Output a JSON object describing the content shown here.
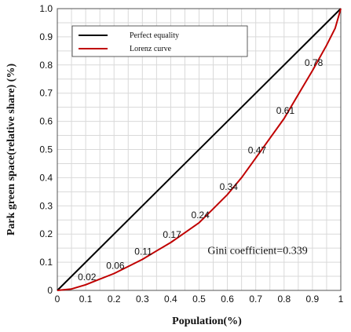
{
  "chart_data": {
    "type": "line",
    "xlabel": "Population(%)",
    "ylabel": "Park green space(relative share) (%)",
    "xlim": [
      0,
      1
    ],
    "ylim": [
      0,
      1
    ],
    "grid": true,
    "legend_position": "top-left",
    "x_ticks": [
      "0",
      "0.1",
      "0.2",
      "0.3",
      "0.4",
      "0.5",
      "0.6",
      "0.7",
      "0.8",
      "0.9",
      "1"
    ],
    "y_ticks": [
      "0",
      "0.1",
      "0.2",
      "0.3",
      "0.4",
      "0.5",
      "0.6",
      "0.7",
      "0.8",
      "0.9",
      "1.0"
    ],
    "series": [
      {
        "name": "Perfect equality",
        "color": "#000000",
        "x": [
          0,
          1
        ],
        "y": [
          0,
          1
        ]
      },
      {
        "name": "Lorenz curve",
        "color": "#c00000",
        "x": [
          0,
          0.05,
          0.1,
          0.15,
          0.2,
          0.25,
          0.3,
          0.35,
          0.4,
          0.45,
          0.5,
          0.55,
          0.6,
          0.65,
          0.7,
          0.75,
          0.8,
          0.85,
          0.9,
          0.95,
          0.98,
          1.0
        ],
        "y": [
          0,
          0.005,
          0.02,
          0.04,
          0.06,
          0.085,
          0.11,
          0.14,
          0.17,
          0.205,
          0.24,
          0.29,
          0.34,
          0.4,
          0.47,
          0.54,
          0.61,
          0.695,
          0.78,
          0.87,
          0.93,
          1.0
        ]
      }
    ],
    "point_labels": [
      {
        "text": "0.02",
        "x": 0.1,
        "y": 0.02
      },
      {
        "text": "0.06",
        "x": 0.2,
        "y": 0.06
      },
      {
        "text": "0.11",
        "x": 0.3,
        "y": 0.11
      },
      {
        "text": "0.17",
        "x": 0.4,
        "y": 0.17
      },
      {
        "text": "0.24",
        "x": 0.5,
        "y": 0.24
      },
      {
        "text": "0.34",
        "x": 0.6,
        "y": 0.34
      },
      {
        "text": "0.47",
        "x": 0.7,
        "y": 0.47
      },
      {
        "text": "0.61",
        "x": 0.8,
        "y": 0.61
      },
      {
        "text": "0.78",
        "x": 0.9,
        "y": 0.78
      }
    ],
    "annotation": {
      "text": "Gini coefficient=0.339",
      "x": 0.53,
      "y": 0.13
    }
  }
}
